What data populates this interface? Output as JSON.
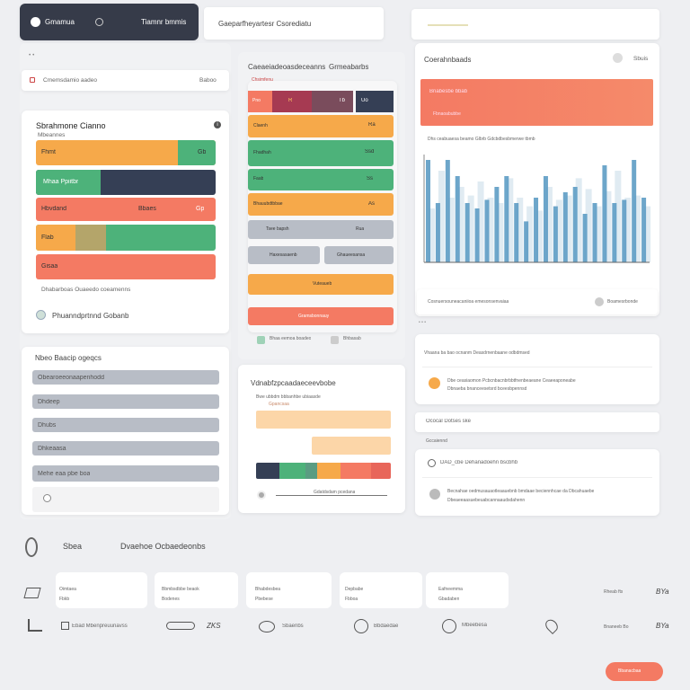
{
  "colors": {
    "orange": "#f6a94a",
    "green": "#4db27a",
    "coral": "#f47a63",
    "navy": "#353f55",
    "maroon": "#a63a52",
    "brown": "#7a4c5c",
    "gray": "#b8bdc6",
    "blue": "#5d9cc4",
    "paleblue": "#c7dbe8",
    "peach": "#fcd6a8"
  },
  "topbar": {
    "app_name": "Gmamua",
    "app_menu": "Tiamnr bmmis",
    "search_placeholder": "Gaeparfheyartesr Csorediatu"
  },
  "left": {
    "filter": {
      "label": "Cmemsdamio aadeo",
      "value": "Baboo"
    },
    "panel_title": "Sbrahmone Cianno",
    "panel_subtitle": "Mbeannes",
    "bars": [
      {
        "label": "Fhmt",
        "value": "Gb"
      },
      {
        "label": "Mhaa Ppiitbr",
        "value": ""
      },
      {
        "label": "Hbvdand",
        "value": "Bbaes",
        "value2": "Gp"
      },
      {
        "label": "Flab",
        "value": ""
      },
      {
        "label": "Gisaa",
        "value": ""
      }
    ],
    "footnote": "Dhabarboas Ouaeedo coeamenns",
    "footer_link": "Phuanndprtnnd Gobanb"
  },
  "form": {
    "title": "Nbeo Baacip ogeqcs",
    "fields": [
      "Obearoeeonaapenhodd",
      "Dhdeep",
      "Dhubs",
      "Dhkeaasa",
      "Mehe eaa pbe boa"
    ]
  },
  "middle": {
    "title_a": "Caeaeiadeoasdeceanns",
    "title_b": "Grmeabarbs",
    "subtitle": "Chsimfenu",
    "top_cells": [
      "Pno",
      "R",
      "Tb",
      "Uo"
    ],
    "bars": [
      {
        "label": "Claenh",
        "value": "Ra"
      },
      {
        "label": "Fhadhah",
        "value": "Ssd"
      },
      {
        "label": "Faab",
        "value": "Ss"
      },
      {
        "label": "Bhauubdtbbae",
        "value": "As"
      },
      {
        "label": "Tsee bapsh",
        "value": "Rua"
      }
    ],
    "split_buttons": [
      "Haxesasaenb",
      "Ghaueesansa"
    ],
    "orange_button": "Vuteaueb",
    "coral_button": "Gramsbonnauy",
    "legend": [
      {
        "label": "Bhaa eemoa boadeo"
      },
      {
        "label": "Bhbasab"
      }
    ]
  },
  "timeline": {
    "title": "Vdnabfzpcaadaeceevbobe",
    "subtitle": "Bwe ubbdm bbbanhbe ubiaasde",
    "sub2": "Gpancsaa",
    "segments": [
      {
        "color": "#353f55"
      },
      {
        "color": "#4db27a"
      },
      {
        "color": "#5a9c82"
      },
      {
        "color": "#f6a94a"
      },
      {
        "color": "#f47a63"
      },
      {
        "color": "#e8665a"
      }
    ],
    "slider_label": "Gdatdsdam pcedana"
  },
  "chart_panel": {
    "title": "Coerahnbaads",
    "badge": "Sbuis",
    "banner_title": "Bnabesbe bbab",
    "banner_sub": "Fbnaoabubbe",
    "caption": "Dhs ceabuaesa beamo Glbrb Gdcbdbesbmerwe tbmb",
    "footer_left": "Cosnuersouneacaniioa emesonsenvaiaa",
    "footer_right": "Boamesrbonde"
  },
  "chart_data": {
    "type": "bar",
    "series": [
      {
        "name": "",
        "values": [
          0.95,
          0.55,
          0.95,
          0.8,
          0.55,
          0.5,
          0.58,
          0.7,
          0.8,
          0.55,
          0.38,
          0.6,
          0.8,
          0.52,
          0.65,
          0.7,
          0.45,
          0.55,
          0.9,
          0.55,
          0.58,
          0.95,
          0.6
        ]
      },
      {
        "name": "",
        "values": [
          0.5,
          0.85,
          0.6,
          0.7,
          0.62,
          0.75,
          0.6,
          0.55,
          0.78,
          0.6,
          0.52,
          0.48,
          0.7,
          0.58,
          0.62,
          0.78,
          0.68,
          0.52,
          0.66,
          0.85,
          0.6,
          0.62,
          0.52
        ]
      }
    ],
    "ylim": [
      0,
      1
    ]
  },
  "notes": {
    "header": "Vhaana ba bao ocnanm Deasdrnenbaane odbdmsed",
    "item1_line1": "Dbe ceasiaomon Pcbcnbacnbrbbtfnenbeaeane Ceaeeaponeabe",
    "item1_line2": "Dbnaeba bnanceesetsrd bceesbpennsd",
    "section": "Ococal Dotses ske",
    "section_sub": "Gccaiennd",
    "item2": "DAD_cbe Dehanadoehn bscbhb",
    "item3_line1": "Becnahae oedmusauaotleaauebnb bmdaae beciennhcae da Dbcahuaebe",
    "item3_line2": "Dbeaeeaasuebeuabcannaaudsdahenn"
  },
  "bottom": {
    "title": "Sbea",
    "subtitle": "Dvaehoe Ocbaedeonbs",
    "row1": [
      {
        "title": "Oimtaea",
        "sub": "Fbkb"
      },
      {
        "title": "Bbmbsdbbe beaok",
        "sub": "Bodenes"
      },
      {
        "title": "Bhabdesbea",
        "sub": "Pbebese"
      },
      {
        "title": "Depbabe",
        "sub": "Fbboa"
      },
      {
        "title": "Eafneemma",
        "sub": "Gbadaben"
      },
      {
        "title": "Rheab fts",
        "sub": ""
      }
    ],
    "row1_value": "BYa",
    "row2": [
      {
        "text": "Ebad Mbenpreuunavss"
      },
      {
        "text": "ZKS"
      },
      {
        "text": "Sbaenbs"
      },
      {
        "text": "Bbdaedae"
      },
      {
        "text": "Mbeebesa"
      },
      {
        "text": ""
      }
    ],
    "row2_right": "Bnaneeb Bo",
    "row2_value": "BYa",
    "cta": "Bbanacbaa"
  }
}
